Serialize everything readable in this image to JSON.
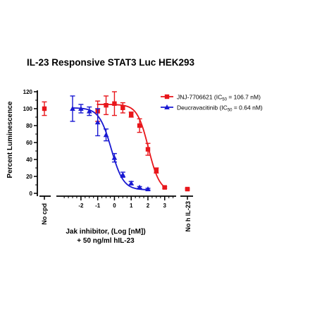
{
  "chart_data": {
    "type": "scatter",
    "title": "IL-23 Responsive STAT3 Luc HEK293",
    "ylabel": "Percent Luminescence",
    "xlabel_line1": "Jak inhibitor, (Log [nM])",
    "xlabel_line2": "+ 50 ng/ml hIL-23",
    "control_left_label": "No cpd",
    "control_right_label": "No h IL-23",
    "xlim": [
      -3.3,
      3.6
    ],
    "ylim": [
      0,
      120
    ],
    "x_ticks": [
      -2,
      -1,
      0,
      1,
      2,
      3
    ],
    "x_tick_labels": [
      "-2",
      "-1",
      "0",
      "1",
      "2",
      "3"
    ],
    "y_ticks": [
      0,
      20,
      40,
      60,
      80,
      100,
      120
    ],
    "y_tick_labels": [
      "0",
      "20",
      "40",
      "60",
      "80",
      "100",
      "120"
    ],
    "legend_position": "top-right",
    "series": [
      {
        "name": "JNJ-7706621 (IC",
        "name_sub": "50",
        "name_suffix": " = 106.7 nM)",
        "color": "#e8161b",
        "marker": "square",
        "x": [
          -1,
          -0.5,
          0,
          0.5,
          1,
          1.5,
          2,
          2.5,
          3
        ],
        "y": [
          97,
          104,
          106,
          101,
          93,
          80,
          52,
          27,
          7
        ],
        "err": [
          12,
          11,
          14,
          6,
          3,
          8,
          7,
          3,
          1
        ],
        "curve_ic50_log": 2.03,
        "curve_top": 105,
        "curve_bottom": 2,
        "curve_hill": 1.3,
        "control_value": 100,
        "control_err": 8,
        "nocontrol_value": 5,
        "nocontrol_err": 1
      },
      {
        "name": "Deucravacitinib (IC",
        "name_sub": "50",
        "name_suffix": " = 0.64 nM)",
        "color": "#1919d2",
        "marker": "triangle",
        "x": [
          -2.5,
          -2,
          -1.5,
          -1,
          -0.5,
          0,
          0.5,
          1,
          1.5,
          2
        ],
        "y": [
          100,
          100,
          97,
          84,
          69,
          42,
          22,
          12,
          7,
          5
        ],
        "err": [
          15,
          5,
          5,
          16,
          7,
          5,
          3,
          2,
          1,
          1
        ],
        "curve_ic50_log": -0.19,
        "curve_top": 101,
        "curve_bottom": 4,
        "curve_hill": 1.2
      }
    ]
  }
}
